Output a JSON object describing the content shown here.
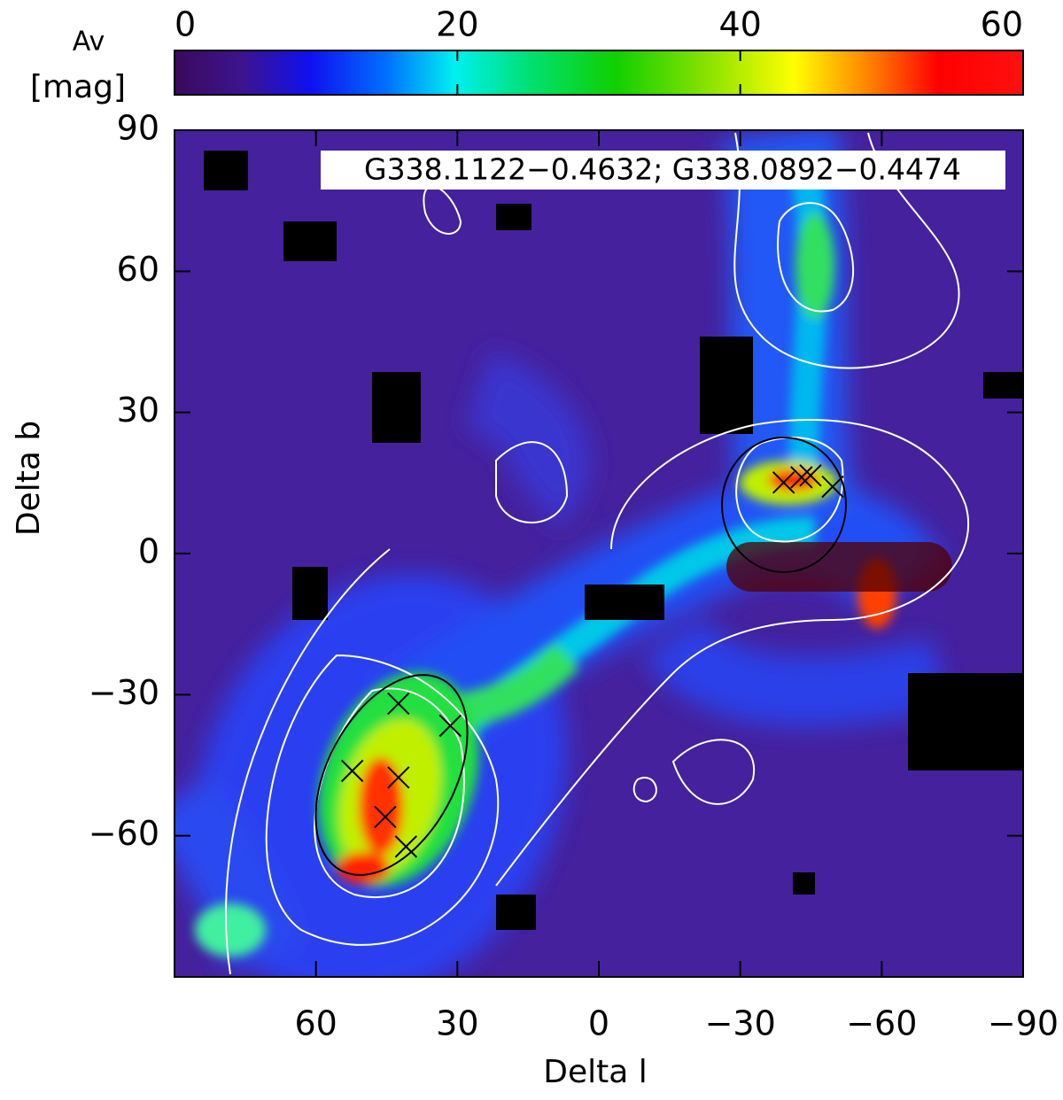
{
  "chart_data": {
    "type": "heatmap",
    "title": "G338.1122−0.4632; G338.0892−0.4474",
    "xlabel": "Delta l",
    "ylabel": "Delta b",
    "xlim": [
      90,
      -90
    ],
    "ylim": [
      -90,
      90
    ],
    "xticks": [
      60,
      30,
      0,
      {
        "value": -30,
        "label": "−30"
      },
      {
        "value": -60,
        "label": "−60"
      },
      {
        "value": -90,
        "label": "−90"
      }
    ],
    "yticks": [
      90,
      60,
      30,
      0,
      {
        "value": -30,
        "label": "−30"
      },
      {
        "value": -60,
        "label": "−60"
      }
    ],
    "colorbar": {
      "label": "Av",
      "unit": "[mag]",
      "lim": [
        0,
        60
      ],
      "ticks": [
        0,
        20,
        40,
        60
      ]
    },
    "markers": {
      "color": "#000000",
      "x": [
        42.5,
        31.5,
        52.3,
        42.5,
        45.3,
        40.9,
        -39.2,
        -43.0,
        -44.9,
        -49.6
      ],
      "y": [
        -31.9,
        -36.6,
        -46.2,
        -47.6,
        -56.0,
        -62.3,
        15.1,
        16.2,
        16.6,
        14.2
      ]
    }
  }
}
